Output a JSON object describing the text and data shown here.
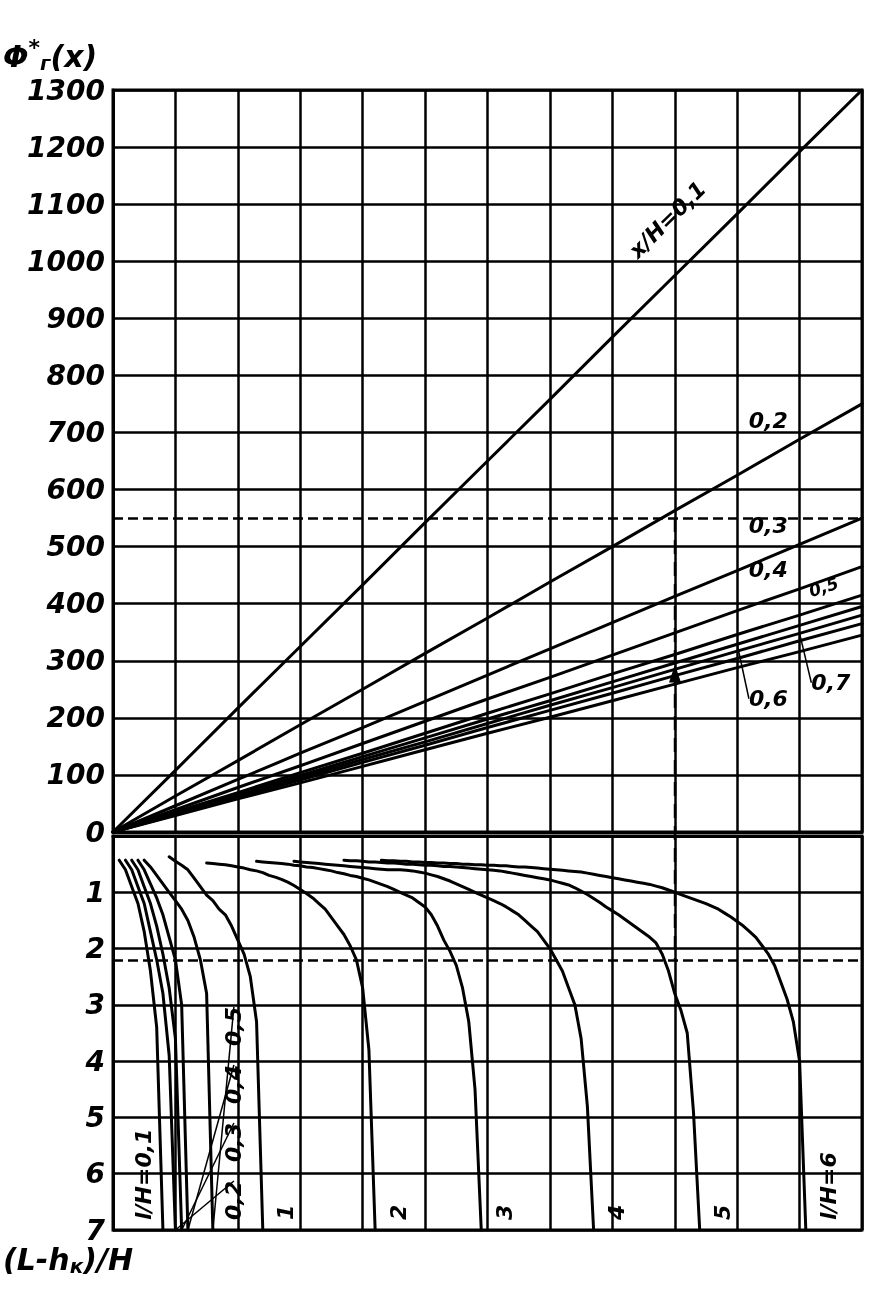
{
  "chart_data": [
    {
      "type": "line",
      "ylabel": "Φ$^{*}$$_{г}$(x)",
      "categories": [
        null,
        null,
        null,
        null,
        null,
        null,
        null,
        null,
        null,
        null,
        null,
        null,
        null
      ],
      "series": [
        {
          "name": "x/H=0,1",
          "color": "#000000",
          "values": [
            0,
            108,
            217,
            325,
            433,
            542,
            650,
            758,
            867,
            975,
            1083,
            1192,
            1300
          ]
        },
        {
          "name": "0,2",
          "color": "#000000",
          "values": [
            0,
            63,
            125,
            188,
            250,
            313,
            375,
            438,
            500,
            563,
            625,
            688,
            750
          ]
        },
        {
          "name": "0,3",
          "color": "#000000",
          "values": [
            0,
            46,
            92,
            138,
            183,
            229,
            275,
            321,
            367,
            413,
            458,
            504,
            550
          ]
        },
        {
          "name": "0,4",
          "color": "#000000",
          "values": [
            0,
            39,
            78,
            116,
            155,
            194,
            233,
            271,
            310,
            349,
            388,
            426,
            465
          ]
        },
        {
          "name": "0,5",
          "color": "#000000",
          "values": [
            0,
            35,
            69,
            104,
            138,
            173,
            208,
            242,
            277,
            311,
            346,
            380,
            415
          ]
        },
        {
          "name": "0,6",
          "color": "#000000",
          "values": [
            0,
            33,
            66,
            99,
            132,
            165,
            198,
            230,
            263,
            296,
            329,
            362,
            395
          ]
        },
        {
          "name": "0,7",
          "color": "#000000",
          "values": [
            0,
            32,
            63,
            95,
            127,
            158,
            190,
            222,
            253,
            285,
            317,
            348,
            380
          ]
        },
        {
          "color": "#000000",
          "values": [
            0,
            30,
            61,
            91,
            122,
            152,
            183,
            213,
            243,
            274,
            304,
            335,
            365
          ]
        },
        {
          "color": "#000000",
          "values": [
            0,
            29,
            58,
            86,
            115,
            144,
            173,
            201,
            230,
            259,
            288,
            316,
            345
          ]
        }
      ],
      "ylim": [
        0,
        1300
      ],
      "yticks": [
        0,
        100,
        200,
        300,
        400,
        500,
        600,
        700,
        800,
        900,
        1000,
        1100,
        1200,
        1300
      ],
      "grid": true,
      "tick_labels": "y",
      "ref_lines": [
        {
          "axis": "y",
          "value": 550,
          "line_style": "dashed"
        }
      ]
    },
    {
      "type": "line",
      "ylabel": "(L-h$_{к}$)/H",
      "categories": [
        null,
        null,
        null,
        null,
        null,
        null,
        null,
        null,
        null,
        null,
        null,
        null,
        null,
        null,
        null,
        null,
        null,
        null,
        null,
        null,
        null,
        null,
        null,
        null,
        null,
        null,
        null,
        null,
        null,
        null,
        null,
        null,
        null,
        null,
        null,
        null,
        null,
        null,
        null,
        null,
        null,
        null,
        null,
        null,
        null,
        null,
        null,
        null,
        null,
        null,
        null,
        null,
        null,
        null,
        null,
        null,
        null,
        null,
        null,
        null,
        null,
        null,
        null,
        null,
        null,
        null,
        null,
        null,
        null,
        null,
        null,
        null,
        null,
        null,
        null,
        null,
        null,
        null,
        null,
        null,
        null,
        null,
        null,
        null,
        null,
        null,
        null,
        null,
        null,
        null,
        null,
        null,
        null,
        null,
        null,
        null,
        null,
        null,
        null,
        null,
        null,
        null,
        null,
        null,
        null,
        null,
        null,
        null,
        null,
        null,
        null,
        null,
        null,
        null,
        null,
        null,
        null,
        null,
        null,
        null,
        null
      ],
      "series": [
        {
          "name": "l/H=0,1",
          "color": "#000000",
          "values": [
            null,
            0.43,
            0.6,
            0.9,
            1.2,
            1.7,
            2.4,
            3.4,
            7.0,
            null,
            null,
            null,
            null,
            null,
            null,
            null,
            null,
            null,
            null,
            null,
            null,
            null,
            null,
            null,
            null,
            null,
            null,
            null,
            null,
            null,
            null,
            null,
            null,
            null,
            null,
            null,
            null,
            null,
            null,
            null,
            null,
            null,
            null,
            null,
            null,
            null,
            null,
            null,
            null,
            null,
            null,
            null,
            null,
            null,
            null,
            null,
            null,
            null,
            null,
            null,
            null,
            null,
            null,
            null,
            null,
            null,
            null,
            null,
            null,
            null,
            null,
            null,
            null,
            null,
            null,
            null,
            null,
            null,
            null,
            null,
            null,
            null,
            null,
            null,
            null,
            null,
            null,
            null,
            null,
            null,
            null,
            null,
            null,
            null,
            null,
            null,
            null,
            null,
            null,
            null,
            null,
            null,
            null,
            null,
            null,
            null,
            null,
            null,
            null,
            null,
            null,
            null,
            null,
            null,
            null,
            null,
            null,
            null,
            null,
            null,
            null
          ]
        },
        {
          "name": "0,2",
          "color": "#000000",
          "values": [
            null,
            null,
            0.43,
            0.6,
            0.9,
            1.2,
            1.7,
            2.2,
            2.8,
            3.9,
            7.0,
            null,
            null,
            null,
            null,
            null,
            null,
            null,
            null,
            null,
            null,
            null,
            null,
            null,
            null,
            null,
            null,
            null,
            null,
            null,
            null,
            null,
            null,
            null,
            null,
            null,
            null,
            null,
            null,
            null,
            null,
            null,
            null,
            null,
            null,
            null,
            null,
            null,
            null,
            null,
            null,
            null,
            null,
            null,
            null,
            null,
            null,
            null,
            null,
            null,
            null,
            null,
            null,
            null,
            null,
            null,
            null,
            null,
            null,
            null,
            null,
            null,
            null,
            null,
            null,
            null,
            null,
            null,
            null,
            null,
            null,
            null,
            null,
            null,
            null,
            null,
            null,
            null,
            null,
            null,
            null,
            null,
            null,
            null,
            null,
            null,
            null,
            null,
            null,
            null,
            null,
            null,
            null,
            null,
            null,
            null,
            null,
            null,
            null,
            null,
            null,
            null,
            null,
            null,
            null,
            null,
            null,
            null,
            null,
            null,
            null
          ]
        },
        {
          "name": "0,3",
          "color": "#000000",
          "values": [
            null,
            null,
            null,
            0.43,
            0.6,
            0.9,
            1.2,
            1.6,
            2.1,
            2.7,
            3.6,
            7.0,
            null,
            null,
            null,
            null,
            null,
            null,
            null,
            null,
            null,
            null,
            null,
            null,
            null,
            null,
            null,
            null,
            null,
            null,
            null,
            null,
            null,
            null,
            null,
            null,
            null,
            null,
            null,
            null,
            null,
            null,
            null,
            null,
            null,
            null,
            null,
            null,
            null,
            null,
            null,
            null,
            null,
            null,
            null,
            null,
            null,
            null,
            null,
            null,
            null,
            null,
            null,
            null,
            null,
            null,
            null,
            null,
            null,
            null,
            null,
            null,
            null,
            null,
            null,
            null,
            null,
            null,
            null,
            null,
            null,
            null,
            null,
            null,
            null,
            null,
            null,
            null,
            null,
            null,
            null,
            null,
            null,
            null,
            null,
            null,
            null,
            null,
            null,
            null,
            null,
            null,
            null,
            null,
            null,
            null,
            null,
            null,
            null,
            null,
            null,
            null,
            null,
            null,
            null,
            null,
            null,
            null,
            null,
            null,
            null
          ]
        },
        {
          "name": "0,4",
          "color": "#000000",
          "values": [
            null,
            null,
            null,
            null,
            0.43,
            0.6,
            0.85,
            1.1,
            1.4,
            1.8,
            2.2,
            3.0,
            7.0,
            null,
            null,
            null,
            null,
            null,
            null,
            null,
            null,
            null,
            null,
            null,
            null,
            null,
            null,
            null,
            null,
            null,
            null,
            null,
            null,
            null,
            null,
            null,
            null,
            null,
            null,
            null,
            null,
            null,
            null,
            null,
            null,
            null,
            null,
            null,
            null,
            null,
            null,
            null,
            null,
            null,
            null,
            null,
            null,
            null,
            null,
            null,
            null,
            null,
            null,
            null,
            null,
            null,
            null,
            null,
            null,
            null,
            null,
            null,
            null,
            null,
            null,
            null,
            null,
            null,
            null,
            null,
            null,
            null,
            null,
            null,
            null,
            null,
            null,
            null,
            null,
            null,
            null,
            null,
            null,
            null,
            null,
            null,
            null,
            null,
            null,
            null,
            null,
            null,
            null,
            null,
            null,
            null,
            null,
            null,
            null,
            null,
            null,
            null,
            null,
            null,
            null,
            null,
            null,
            null,
            null,
            null,
            null
          ]
        },
        {
          "name": "0,5",
          "color": "#000000",
          "values": [
            null,
            null,
            null,
            null,
            null,
            0.43,
            0.55,
            0.7,
            0.85,
            1.0,
            1.15,
            1.3,
            1.5,
            1.8,
            2.2,
            2.8,
            7.0,
            null,
            null,
            null,
            null,
            null,
            null,
            null,
            null,
            null,
            null,
            null,
            null,
            null,
            null,
            null,
            null,
            null,
            null,
            null,
            null,
            null,
            null,
            null,
            null,
            null,
            null,
            null,
            null,
            null,
            null,
            null,
            null,
            null,
            null,
            null,
            null,
            null,
            null,
            null,
            null,
            null,
            null,
            null,
            null,
            null,
            null,
            null,
            null,
            null,
            null,
            null,
            null,
            null,
            null,
            null,
            null,
            null,
            null,
            null,
            null,
            null,
            null,
            null,
            null,
            null,
            null,
            null,
            null,
            null,
            null,
            null,
            null,
            null,
            null,
            null,
            null,
            null,
            null,
            null,
            null,
            null,
            null,
            null,
            null,
            null,
            null,
            null,
            null,
            null,
            null,
            null,
            null,
            null,
            null,
            null,
            null,
            null,
            null,
            null,
            null,
            null,
            null,
            null,
            null
          ]
        },
        {
          "name": "1",
          "color": "#000000",
          "values": [
            null,
            null,
            null,
            null,
            null,
            null,
            null,
            null,
            null,
            0.37,
            0.45,
            0.52,
            0.6,
            0.75,
            0.9,
            1.05,
            1.15,
            1.3,
            1.4,
            1.6,
            1.85,
            2.1,
            2.5,
            3.3,
            7.0,
            null,
            null,
            null,
            null,
            null,
            null,
            null,
            null,
            null,
            null,
            null,
            null,
            null,
            null,
            null,
            null,
            null,
            null,
            null,
            null,
            null,
            null,
            null,
            null,
            null,
            null,
            null,
            null,
            null,
            null,
            null,
            null,
            null,
            null,
            null,
            null,
            null,
            null,
            null,
            null,
            null,
            null,
            null,
            null,
            null,
            null,
            null,
            null,
            null,
            null,
            null,
            null,
            null,
            null,
            null,
            null,
            null,
            null,
            null,
            null,
            null,
            null,
            null,
            null,
            null,
            null,
            null,
            null,
            null,
            null,
            null,
            null,
            null,
            null,
            null,
            null,
            null,
            null,
            null,
            null,
            null,
            null,
            null,
            null,
            null,
            null,
            null,
            null,
            null,
            null,
            null,
            null,
            null,
            null,
            null,
            null
          ]
        },
        {
          "name": "2",
          "color": "#000000",
          "values": [
            null,
            null,
            null,
            null,
            null,
            null,
            null,
            null,
            null,
            null,
            null,
            null,
            null,
            null,
            null,
            0.48,
            0.49,
            0.5,
            0.51,
            0.53,
            0.55,
            0.57,
            0.6,
            0.62,
            0.65,
            0.7,
            0.73,
            0.77,
            0.82,
            0.88,
            0.95,
            1.02,
            1.1,
            1.2,
            1.3,
            1.45,
            1.6,
            1.75,
            1.95,
            2.2,
            2.7,
            3.8,
            7.0,
            null,
            null,
            null,
            null,
            null,
            null,
            null,
            null,
            null,
            null,
            null,
            null,
            null,
            null,
            null,
            null,
            null,
            null,
            null,
            null,
            null,
            null,
            null,
            null,
            null,
            null,
            null,
            null,
            null,
            null,
            null,
            null,
            null,
            null,
            null,
            null,
            null,
            null,
            null,
            null,
            null,
            null,
            null,
            null,
            null,
            null,
            null,
            null,
            null,
            null,
            null,
            null,
            null,
            null,
            null,
            null,
            null,
            null,
            null,
            null,
            null,
            null,
            null,
            null,
            null,
            null,
            null,
            null,
            null,
            null,
            null,
            null,
            null,
            null,
            null,
            null,
            null,
            null
          ]
        },
        {
          "name": "3",
          "color": "#000000",
          "values": [
            null,
            null,
            null,
            null,
            null,
            null,
            null,
            null,
            null,
            null,
            null,
            null,
            null,
            null,
            null,
            null,
            null,
            null,
            null,
            null,
            null,
            null,
            null,
            0.45,
            0.46,
            0.47,
            0.48,
            0.49,
            0.5,
            0.52,
            0.53,
            0.55,
            0.56,
            0.58,
            0.6,
            0.62,
            0.65,
            0.67,
            0.7,
            0.72,
            0.75,
            0.78,
            0.82,
            0.86,
            0.9,
            0.95,
            1.0,
            1.05,
            1.1,
            1.18,
            1.26,
            1.4,
            1.6,
            1.85,
            2.05,
            2.3,
            2.7,
            3.3,
            4.5,
            7.0,
            null,
            null,
            null,
            null,
            null,
            null,
            null,
            null,
            null,
            null,
            null,
            null,
            null,
            null,
            null,
            null,
            null,
            null,
            null,
            null,
            null,
            null,
            null,
            null,
            null,
            null,
            null,
            null,
            null,
            null,
            null,
            null,
            null,
            null,
            null,
            null,
            null,
            null,
            null,
            null,
            null,
            null,
            null,
            null,
            null,
            null,
            null,
            null,
            null,
            null,
            null,
            null,
            null,
            null,
            null,
            null,
            null,
            null,
            null,
            null,
            null
          ]
        },
        {
          "name": "4",
          "color": "#000000",
          "values": [
            null,
            null,
            null,
            null,
            null,
            null,
            null,
            null,
            null,
            null,
            null,
            null,
            null,
            null,
            null,
            null,
            null,
            null,
            null,
            null,
            null,
            null,
            null,
            null,
            null,
            null,
            null,
            null,
            null,
            0.45,
            0.46,
            0.47,
            0.48,
            0.49,
            0.5,
            0.51,
            0.52,
            0.53,
            0.54,
            0.55,
            0.56,
            0.57,
            0.58,
            0.59,
            0.6,
            0.6,
            0.6,
            0.61,
            0.62,
            0.64,
            0.66,
            0.69,
            0.72,
            0.76,
            0.8,
            0.85,
            0.9,
            0.95,
            1.0,
            1.05,
            1.1,
            1.15,
            1.2,
            1.26,
            1.33,
            1.4,
            1.5,
            1.6,
            1.7,
            1.85,
            2.0,
            2.2,
            2.4,
            2.7,
            3.0,
            3.6,
            4.8,
            7.0,
            null,
            null,
            null,
            null,
            null,
            null,
            null,
            null,
            null,
            null,
            null,
            null,
            null,
            null,
            null,
            null,
            null,
            null,
            null,
            null,
            null,
            null,
            null,
            null,
            null,
            null,
            null,
            null,
            null,
            null,
            null,
            null,
            null,
            null,
            null,
            null,
            null,
            null,
            null,
            null,
            null,
            null,
            null
          ]
        },
        {
          "name": "5",
          "color": "#000000",
          "values": [
            null,
            null,
            null,
            null,
            null,
            null,
            null,
            null,
            null,
            null,
            null,
            null,
            null,
            null,
            null,
            null,
            null,
            null,
            null,
            null,
            null,
            null,
            null,
            null,
            null,
            null,
            null,
            null,
            null,
            null,
            null,
            null,
            null,
            null,
            null,
            null,
            null,
            0.43,
            0.44,
            0.44,
            0.45,
            0.46,
            0.46,
            0.47,
            0.48,
            0.48,
            0.49,
            0.5,
            0.5,
            0.51,
            0.52,
            0.52,
            0.53,
            0.54,
            0.54,
            0.55,
            0.56,
            0.57,
            0.58,
            0.59,
            0.6,
            0.61,
            0.62,
            0.64,
            0.66,
            0.68,
            0.7,
            0.72,
            0.74,
            0.76,
            0.78,
            0.81,
            0.84,
            0.87,
            0.92,
            0.98,
            1.04,
            1.11,
            1.18,
            1.26,
            1.33,
            1.4,
            1.48,
            1.56,
            1.64,
            1.72,
            1.8,
            1.9,
            2.1,
            2.4,
            2.8,
            3.1,
            3.5,
            4.9,
            7.0,
            null,
            null,
            null,
            null,
            null,
            null,
            null,
            null,
            null,
            null,
            null,
            null,
            null,
            null,
            null,
            null,
            null,
            null,
            null,
            null,
            null,
            null,
            null,
            null,
            null,
            null
          ]
        },
        {
          "name": "l/H=6",
          "color": "#000000",
          "values": [
            null,
            null,
            null,
            null,
            null,
            null,
            null,
            null,
            null,
            null,
            null,
            null,
            null,
            null,
            null,
            null,
            null,
            null,
            null,
            null,
            null,
            null,
            null,
            null,
            null,
            null,
            null,
            null,
            null,
            null,
            null,
            null,
            null,
            null,
            null,
            null,
            null,
            null,
            null,
            null,
            null,
            null,
            null,
            0.43,
            0.44,
            0.44,
            0.45,
            0.45,
            0.46,
            0.46,
            0.47,
            0.47,
            0.48,
            0.48,
            0.49,
            0.49,
            0.5,
            0.5,
            0.51,
            0.51,
            0.52,
            0.52,
            0.53,
            0.53,
            0.54,
            0.55,
            0.55,
            0.56,
            0.57,
            0.58,
            0.59,
            0.6,
            0.61,
            0.62,
            0.63,
            0.64,
            0.66,
            0.68,
            0.7,
            0.72,
            0.74,
            0.76,
            0.78,
            0.8,
            0.82,
            0.84,
            0.86,
            0.89,
            0.92,
            0.96,
            1.0,
            1.04,
            1.08,
            1.12,
            1.16,
            1.2,
            1.25,
            1.3,
            1.37,
            1.44,
            1.52,
            1.6,
            1.7,
            1.8,
            1.95,
            2.1,
            2.3,
            2.6,
            2.9,
            3.3,
            4.0,
            7.0,
            null,
            null,
            null,
            null,
            null,
            null,
            null,
            null,
            null
          ]
        }
      ],
      "ylim": [
        7,
        0
      ],
      "yticks": [
        1,
        2,
        3,
        4,
        5,
        6,
        7
      ],
      "grid": true,
      "tick_labels": "y",
      "ref_lines": [
        {
          "axis": "y",
          "value": 2.2,
          "line_style": "dashed"
        }
      ]
    }
  ]
}
